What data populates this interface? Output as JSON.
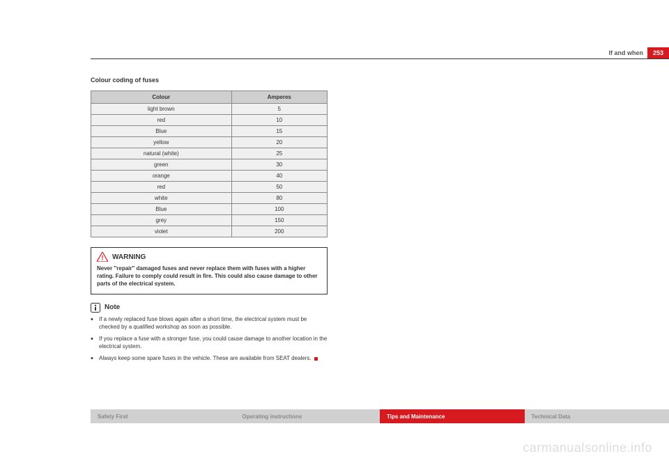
{
  "header": {
    "section": "If and when",
    "page_number": "253"
  },
  "section_title": "Colour coding of fuses",
  "fuse_table": {
    "columns": [
      "Colour",
      "Amperes"
    ],
    "rows": [
      [
        "light brown",
        "5"
      ],
      [
        "red",
        "10"
      ],
      [
        "Blue",
        "15"
      ],
      [
        "yellow",
        "20"
      ],
      [
        "natural (white)",
        "25"
      ],
      [
        "green",
        "30"
      ],
      [
        "orange",
        "40"
      ],
      [
        "red",
        "50"
      ],
      [
        "white",
        "80"
      ],
      [
        "Blue",
        "100"
      ],
      [
        "grey",
        "150"
      ],
      [
        "violet",
        "200"
      ]
    ],
    "header_bg": "#cfcfcf",
    "cell_bg": "#f0f0f0",
    "border_color": "#888888"
  },
  "warning": {
    "title": "WARNING",
    "text": "Never \"repair\" damaged fuses and never replace them with fuses with a higher rating. Failure to comply could result in fire. This could also cause damage to other parts of the electrical system.",
    "icon_color": "#d71920"
  },
  "note": {
    "title": "Note",
    "bullets": [
      "If a newly replaced fuse blows again after a short time, the electrical system must be checked by a qualified workshop as soon as possible.",
      "If you replace a fuse with a stronger fuse, you could cause damage to another location in the electrical system.",
      "Always keep some spare fuses in the vehicle. These are available from SEAT dealers."
    ]
  },
  "footer_tabs": [
    {
      "label": "Safety First",
      "style": "grey"
    },
    {
      "label": "Operating instructions",
      "style": "grey"
    },
    {
      "label": "Tips and Maintenance",
      "style": "active"
    },
    {
      "label": "Technical Data",
      "style": "grey"
    }
  ],
  "watermark": "carmanualsonline.info",
  "colors": {
    "accent_red": "#d71920",
    "text": "#333333",
    "muted": "#888888",
    "watermark": "#dddddd"
  }
}
